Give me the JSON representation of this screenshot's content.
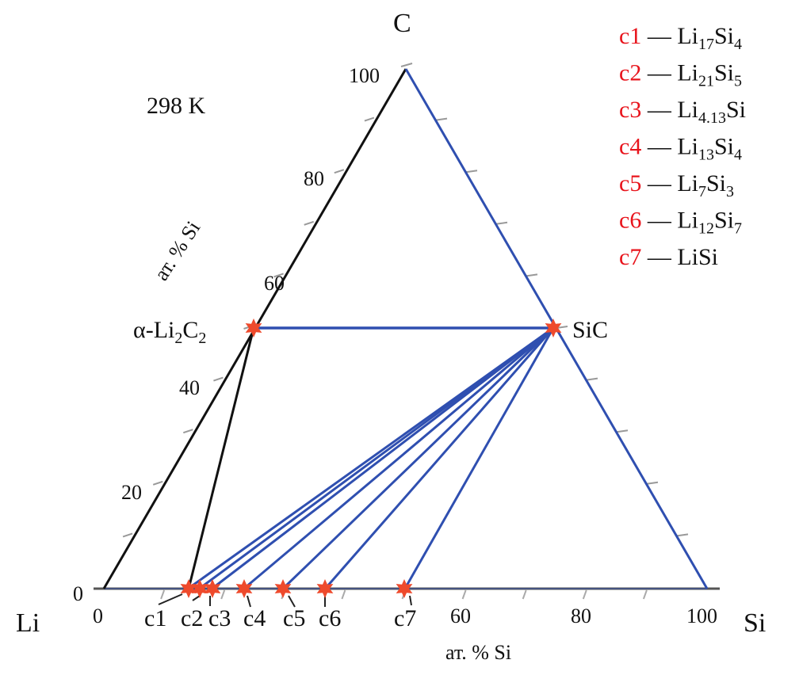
{
  "temperature": "298 K",
  "vertices": {
    "top": "C",
    "left": "Li",
    "right": "Si"
  },
  "left_axis": {
    "label": "ат. % Si",
    "ticks": [
      "0",
      "20",
      "40",
      "60",
      "80",
      "100"
    ]
  },
  "bottom_axis": {
    "label": "ат. % Si",
    "ticks": [
      "0",
      "60",
      "80",
      "100"
    ]
  },
  "phases": {
    "li2c2": {
      "prefix": "α-Li",
      "sub1": "2",
      "mid": "C",
      "sub2": "2"
    },
    "sic": "SiC"
  },
  "points": [
    "c1",
    "c2",
    "c3",
    "c4",
    "c5",
    "c6",
    "c7"
  ],
  "legend": [
    {
      "key": "c1",
      "parts": [
        [
          "Li",
          ""
        ],
        [
          "17",
          "sub"
        ],
        [
          "Si",
          ""
        ],
        [
          "4",
          "sub"
        ]
      ]
    },
    {
      "key": "c2",
      "parts": [
        [
          "Li",
          ""
        ],
        [
          "21",
          "sub"
        ],
        [
          "Si",
          ""
        ],
        [
          "5",
          "sub"
        ]
      ]
    },
    {
      "key": "c3",
      "parts": [
        [
          "Li",
          ""
        ],
        [
          "4.13",
          "sub"
        ],
        [
          "Si",
          ""
        ]
      ]
    },
    {
      "key": "c4",
      "parts": [
        [
          "Li",
          ""
        ],
        [
          "13",
          "sub"
        ],
        [
          "Si",
          ""
        ],
        [
          "4",
          "sub"
        ]
      ]
    },
    {
      "key": "c5",
      "parts": [
        [
          "Li",
          ""
        ],
        [
          "7",
          "sub"
        ],
        [
          "Si",
          ""
        ],
        [
          "3",
          "sub"
        ]
      ]
    },
    {
      "key": "c6",
      "parts": [
        [
          "Li",
          ""
        ],
        [
          "12",
          "sub"
        ],
        [
          "Si",
          ""
        ],
        [
          "7",
          "sub"
        ]
      ]
    },
    {
      "key": "c7",
      "parts": [
        [
          "LiSi",
          ""
        ]
      ]
    }
  ],
  "legend_dash": "—",
  "colors": {
    "tie_line": "#2f4fb0",
    "marker": "#ee4a2c",
    "legend_key": "#e8141c",
    "boundary": "#111111"
  }
}
